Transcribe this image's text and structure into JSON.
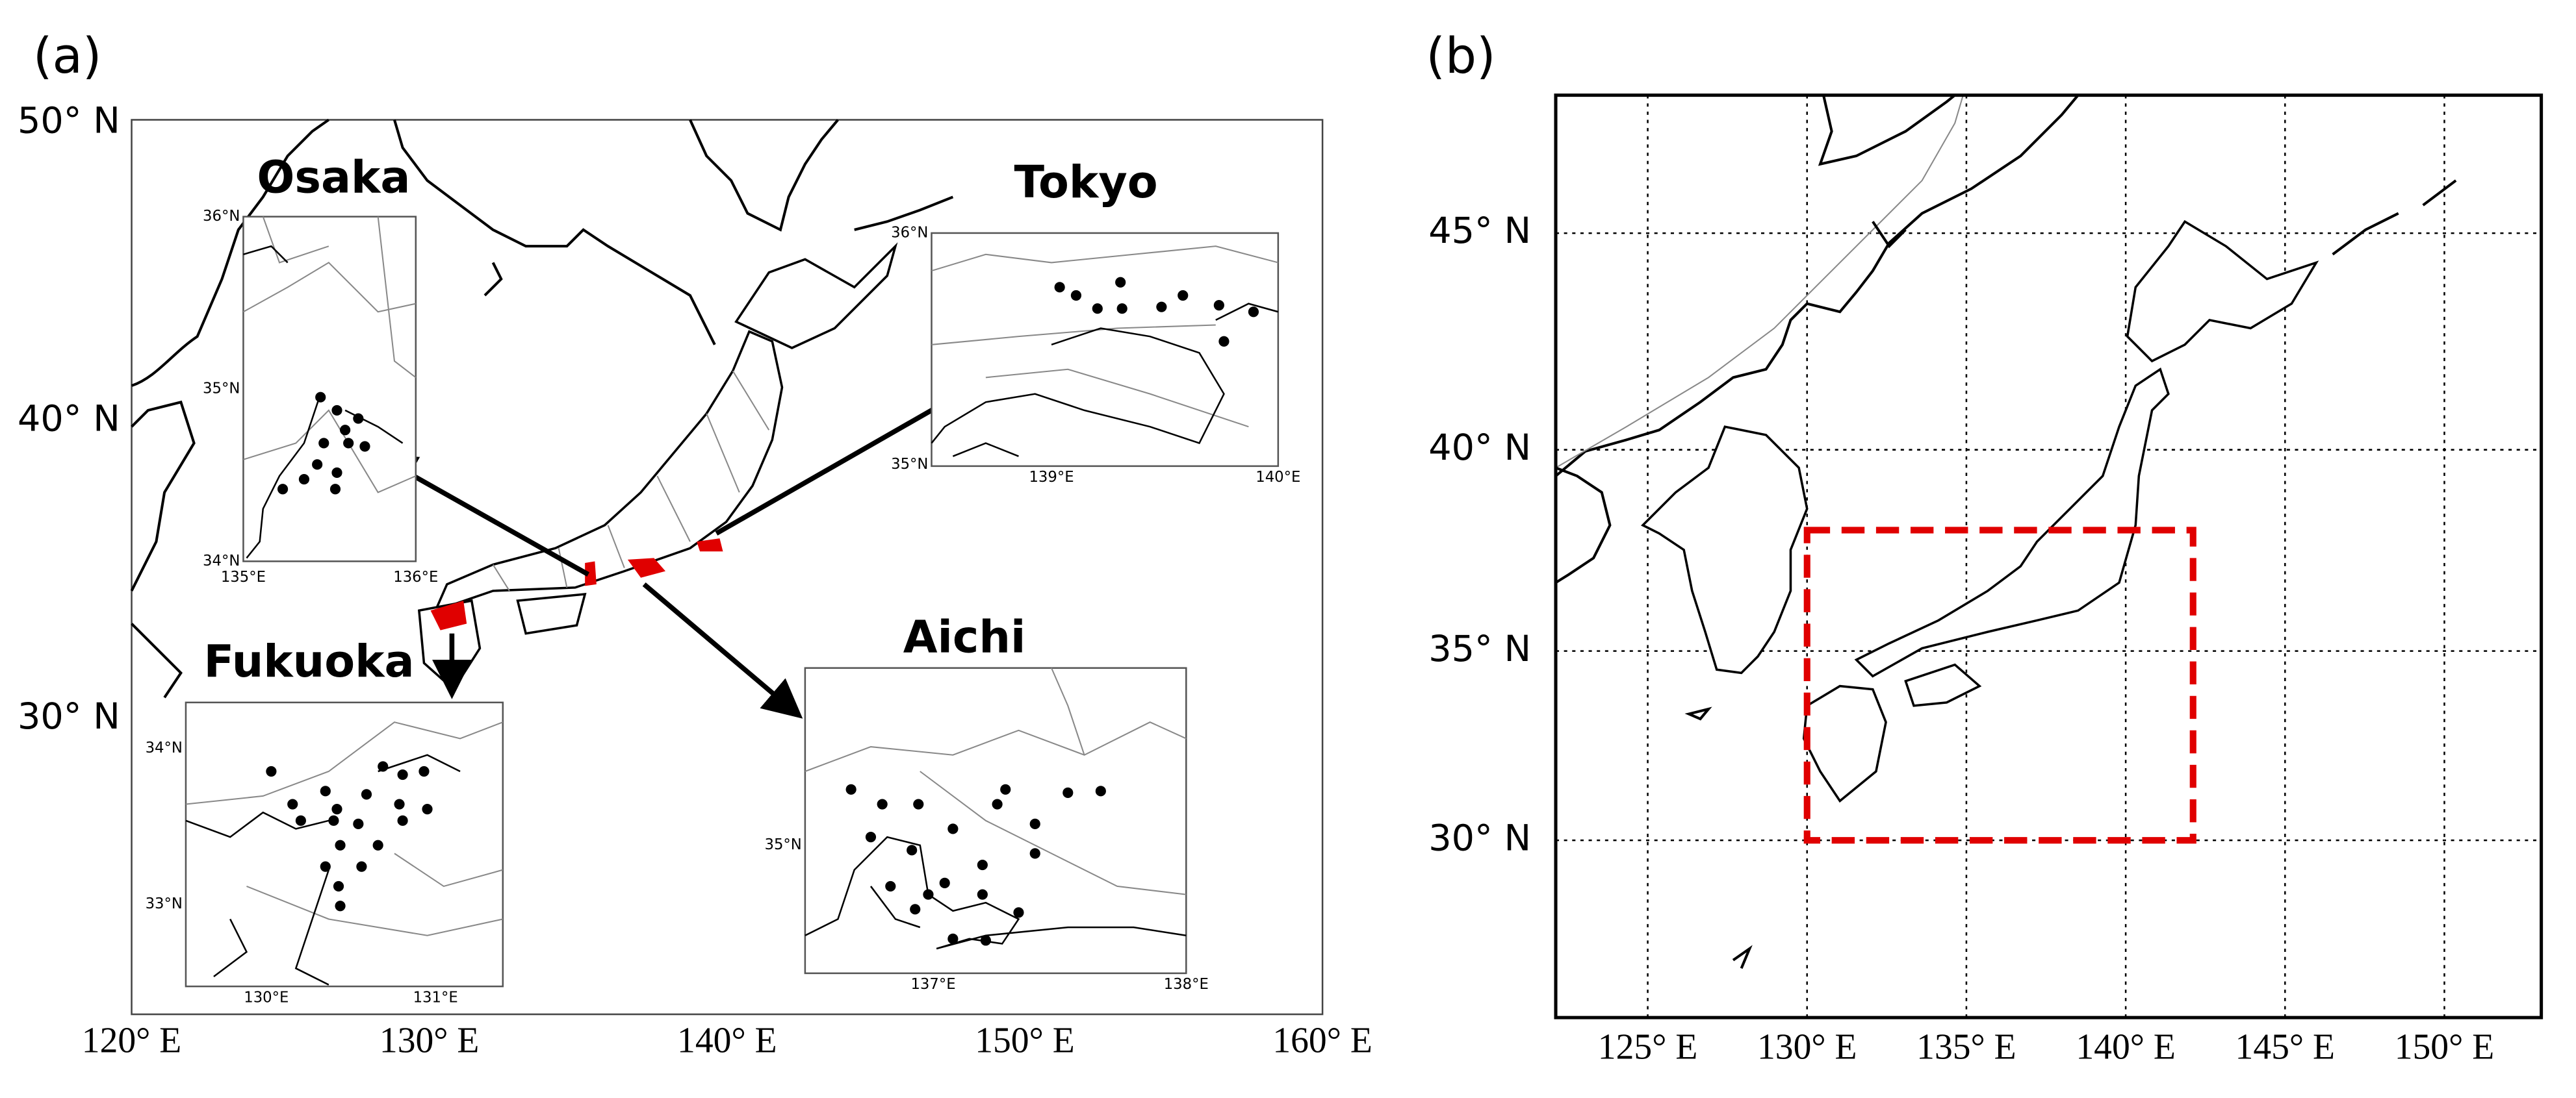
{
  "panels": [
    {
      "label": "(a)",
      "yticks": [
        {
          "value": 50,
          "label": "50° N"
        },
        {
          "value": 40,
          "label": "40° N"
        },
        {
          "value": 30,
          "label": "30° N"
        }
      ],
      "xticks": [
        {
          "value": 120,
          "label": "120° E"
        },
        {
          "value": 130,
          "label": "130° E"
        },
        {
          "value": 140,
          "label": "140° E"
        },
        {
          "value": 150,
          "label": "150° E"
        },
        {
          "value": 160,
          "label": "160° E"
        }
      ],
      "insets": [
        {
          "title": "Osaka",
          "yticks": [
            {
              "value": 36,
              "label": "36°N"
            },
            {
              "value": 35,
              "label": "35°N"
            },
            {
              "value": 34,
              "label": "34°N"
            }
          ],
          "xticks": [
            {
              "value": 135,
              "label": "135°E"
            },
            {
              "value": 136,
              "label": "136°E"
            }
          ]
        },
        {
          "title": "Tokyo",
          "yticks": [
            {
              "value": 36,
              "label": "36°N"
            },
            {
              "value": 35,
              "label": "35°N"
            }
          ],
          "xticks": [
            {
              "value": 139,
              "label": "139°E"
            },
            {
              "value": 140,
              "label": "140°E"
            }
          ]
        },
        {
          "title": "Fukuoka",
          "yticks": [
            {
              "value": 34,
              "label": "34°N"
            },
            {
              "value": 33,
              "label": "33°N"
            }
          ],
          "xticks": [
            {
              "value": 130,
              "label": "130°E"
            },
            {
              "value": 131,
              "label": "131°E"
            }
          ]
        },
        {
          "title": "Aichi",
          "yticks": [
            {
              "value": 35,
              "label": "35°N"
            }
          ],
          "xticks": [
            {
              "value": 137,
              "label": "137°E"
            },
            {
              "value": 138,
              "label": "138°E"
            }
          ]
        }
      ]
    },
    {
      "label": "(b)",
      "yticks": [
        {
          "value": 45,
          "label": "45° N"
        },
        {
          "value": 40,
          "label": "40° N"
        },
        {
          "value": 35,
          "label": "35° N"
        },
        {
          "value": 30,
          "label": "30° N"
        }
      ],
      "xticks": [
        {
          "value": 125,
          "label": "125° E"
        },
        {
          "value": 130,
          "label": "130° E"
        },
        {
          "value": 135,
          "label": "135° E"
        },
        {
          "value": 140,
          "label": "140° E"
        },
        {
          "value": 145,
          "label": "145° E"
        },
        {
          "value": 150,
          "label": "150° E"
        }
      ]
    }
  ]
}
